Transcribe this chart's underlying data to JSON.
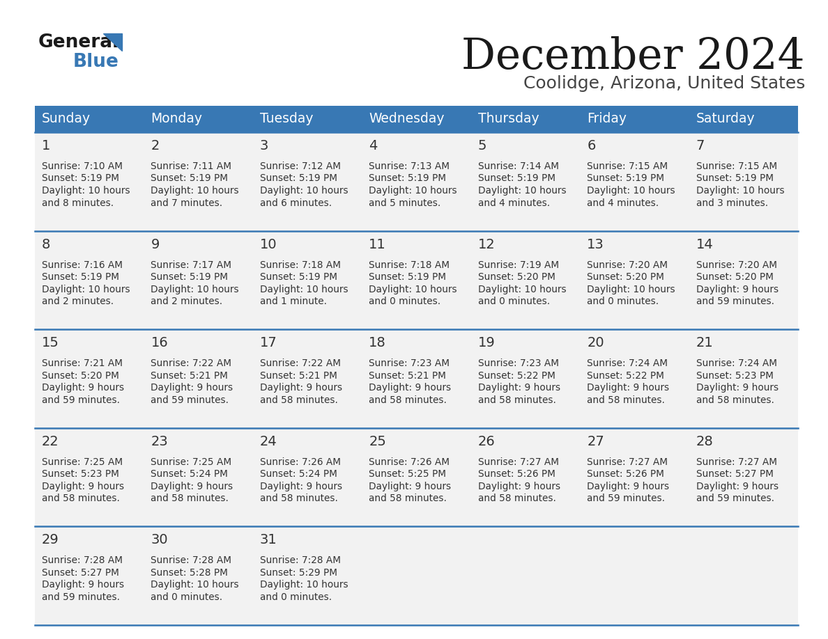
{
  "title": "December 2024",
  "subtitle": "Coolidge, Arizona, United States",
  "days_of_week": [
    "Sunday",
    "Monday",
    "Tuesday",
    "Wednesday",
    "Thursday",
    "Friday",
    "Saturday"
  ],
  "header_bg_color": "#3878b4",
  "header_text_color": "#ffffff",
  "row_bg": "#f2f2f2",
  "separator_color": "#3878b4",
  "title_color": "#1a1a1a",
  "subtitle_color": "#444444",
  "cell_text_color": "#333333",
  "day_num_color": "#333333",
  "weeks": [
    [
      {
        "day": 1,
        "sunrise": "7:10 AM",
        "sunset": "5:19 PM",
        "daylight": "10 hours",
        "daylight2": "and 8 minutes."
      },
      {
        "day": 2,
        "sunrise": "7:11 AM",
        "sunset": "5:19 PM",
        "daylight": "10 hours",
        "daylight2": "and 7 minutes."
      },
      {
        "day": 3,
        "sunrise": "7:12 AM",
        "sunset": "5:19 PM",
        "daylight": "10 hours",
        "daylight2": "and 6 minutes."
      },
      {
        "day": 4,
        "sunrise": "7:13 AM",
        "sunset": "5:19 PM",
        "daylight": "10 hours",
        "daylight2": "and 5 minutes."
      },
      {
        "day": 5,
        "sunrise": "7:14 AM",
        "sunset": "5:19 PM",
        "daylight": "10 hours",
        "daylight2": "and 4 minutes."
      },
      {
        "day": 6,
        "sunrise": "7:15 AM",
        "sunset": "5:19 PM",
        "daylight": "10 hours",
        "daylight2": "and 4 minutes."
      },
      {
        "day": 7,
        "sunrise": "7:15 AM",
        "sunset": "5:19 PM",
        "daylight": "10 hours",
        "daylight2": "and 3 minutes."
      }
    ],
    [
      {
        "day": 8,
        "sunrise": "7:16 AM",
        "sunset": "5:19 PM",
        "daylight": "10 hours",
        "daylight2": "and 2 minutes."
      },
      {
        "day": 9,
        "sunrise": "7:17 AM",
        "sunset": "5:19 PM",
        "daylight": "10 hours",
        "daylight2": "and 2 minutes."
      },
      {
        "day": 10,
        "sunrise": "7:18 AM",
        "sunset": "5:19 PM",
        "daylight": "10 hours",
        "daylight2": "and 1 minute."
      },
      {
        "day": 11,
        "sunrise": "7:18 AM",
        "sunset": "5:19 PM",
        "daylight": "10 hours",
        "daylight2": "and 0 minutes."
      },
      {
        "day": 12,
        "sunrise": "7:19 AM",
        "sunset": "5:20 PM",
        "daylight": "10 hours",
        "daylight2": "and 0 minutes."
      },
      {
        "day": 13,
        "sunrise": "7:20 AM",
        "sunset": "5:20 PM",
        "daylight": "10 hours",
        "daylight2": "and 0 minutes."
      },
      {
        "day": 14,
        "sunrise": "7:20 AM",
        "sunset": "5:20 PM",
        "daylight": "9 hours",
        "daylight2": "and 59 minutes."
      }
    ],
    [
      {
        "day": 15,
        "sunrise": "7:21 AM",
        "sunset": "5:20 PM",
        "daylight": "9 hours",
        "daylight2": "and 59 minutes."
      },
      {
        "day": 16,
        "sunrise": "7:22 AM",
        "sunset": "5:21 PM",
        "daylight": "9 hours",
        "daylight2": "and 59 minutes."
      },
      {
        "day": 17,
        "sunrise": "7:22 AM",
        "sunset": "5:21 PM",
        "daylight": "9 hours",
        "daylight2": "and 58 minutes."
      },
      {
        "day": 18,
        "sunrise": "7:23 AM",
        "sunset": "5:21 PM",
        "daylight": "9 hours",
        "daylight2": "and 58 minutes."
      },
      {
        "day": 19,
        "sunrise": "7:23 AM",
        "sunset": "5:22 PM",
        "daylight": "9 hours",
        "daylight2": "and 58 minutes."
      },
      {
        "day": 20,
        "sunrise": "7:24 AM",
        "sunset": "5:22 PM",
        "daylight": "9 hours",
        "daylight2": "and 58 minutes."
      },
      {
        "day": 21,
        "sunrise": "7:24 AM",
        "sunset": "5:23 PM",
        "daylight": "9 hours",
        "daylight2": "and 58 minutes."
      }
    ],
    [
      {
        "day": 22,
        "sunrise": "7:25 AM",
        "sunset": "5:23 PM",
        "daylight": "9 hours",
        "daylight2": "and 58 minutes."
      },
      {
        "day": 23,
        "sunrise": "7:25 AM",
        "sunset": "5:24 PM",
        "daylight": "9 hours",
        "daylight2": "and 58 minutes."
      },
      {
        "day": 24,
        "sunrise": "7:26 AM",
        "sunset": "5:24 PM",
        "daylight": "9 hours",
        "daylight2": "and 58 minutes."
      },
      {
        "day": 25,
        "sunrise": "7:26 AM",
        "sunset": "5:25 PM",
        "daylight": "9 hours",
        "daylight2": "and 58 minutes."
      },
      {
        "day": 26,
        "sunrise": "7:27 AM",
        "sunset": "5:26 PM",
        "daylight": "9 hours",
        "daylight2": "and 58 minutes."
      },
      {
        "day": 27,
        "sunrise": "7:27 AM",
        "sunset": "5:26 PM",
        "daylight": "9 hours",
        "daylight2": "and 59 minutes."
      },
      {
        "day": 28,
        "sunrise": "7:27 AM",
        "sunset": "5:27 PM",
        "daylight": "9 hours",
        "daylight2": "and 59 minutes."
      }
    ],
    [
      {
        "day": 29,
        "sunrise": "7:28 AM",
        "sunset": "5:27 PM",
        "daylight": "9 hours",
        "daylight2": "and 59 minutes."
      },
      {
        "day": 30,
        "sunrise": "7:28 AM",
        "sunset": "5:28 PM",
        "daylight": "10 hours",
        "daylight2": "and 0 minutes."
      },
      {
        "day": 31,
        "sunrise": "7:28 AM",
        "sunset": "5:29 PM",
        "daylight": "10 hours",
        "daylight2": "and 0 minutes."
      },
      null,
      null,
      null,
      null
    ]
  ]
}
